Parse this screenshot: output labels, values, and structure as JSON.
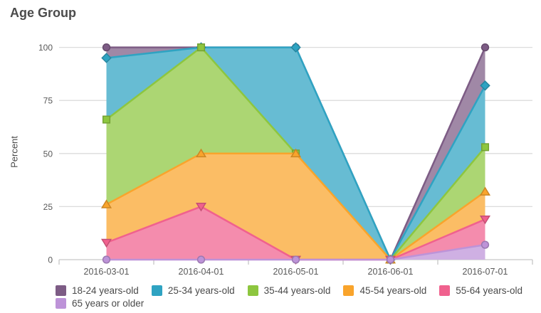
{
  "chart": {
    "title": "Age Group",
    "y_axis_label": "Percent"
  },
  "chart_data": {
    "type": "area",
    "title": "Age Group",
    "ylabel": "Percent",
    "xlabel": "",
    "categories": [
      "2016-03-01",
      "2016-04-01",
      "2016-05-01",
      "2016-06-01",
      "2016-07-01"
    ],
    "series": [
      {
        "name": "18-24 years-old",
        "values": [
          100,
          100,
          100,
          0,
          100
        ],
        "color": "#7d5c85",
        "fill": "#a088a6",
        "marker": "circle"
      },
      {
        "name": "25-34 years-old",
        "values": [
          95,
          100,
          100,
          0,
          82
        ],
        "color": "#2fa3c2",
        "fill": "#67bcd3",
        "marker": "diamond"
      },
      {
        "name": "35-44 years-old",
        "values": [
          66,
          100,
          50,
          0,
          53
        ],
        "color": "#8dc63f",
        "fill": "#acd673",
        "marker": "square"
      },
      {
        "name": "45-54 years-old",
        "values": [
          26,
          50,
          50,
          0,
          32
        ],
        "color": "#f9a42c",
        "fill": "#fbbd65",
        "marker": "triangle-up"
      },
      {
        "name": "55-64 years-old",
        "values": [
          8,
          25,
          0,
          0,
          19
        ],
        "color": "#f0618e",
        "fill": "#f48cad",
        "marker": "triangle-down"
      },
      {
        "name": "65 years or older",
        "values": [
          0,
          0,
          0,
          0,
          7
        ],
        "color": "#bd93d8",
        "fill": "#cfb0e3",
        "marker": "circle"
      }
    ],
    "yticks": [
      0,
      25,
      50,
      75,
      100
    ],
    "ylim": [
      0,
      100
    ],
    "grid": true,
    "legend_position": "bottom",
    "legend_rows": [
      5,
      1
    ]
  },
  "colors": {
    "title_text": "#4b4b4b",
    "tick_text": "#595959",
    "gridline": "#dcdcdc",
    "axis_line": "#c6c6c6",
    "background": "#ffffff"
  }
}
